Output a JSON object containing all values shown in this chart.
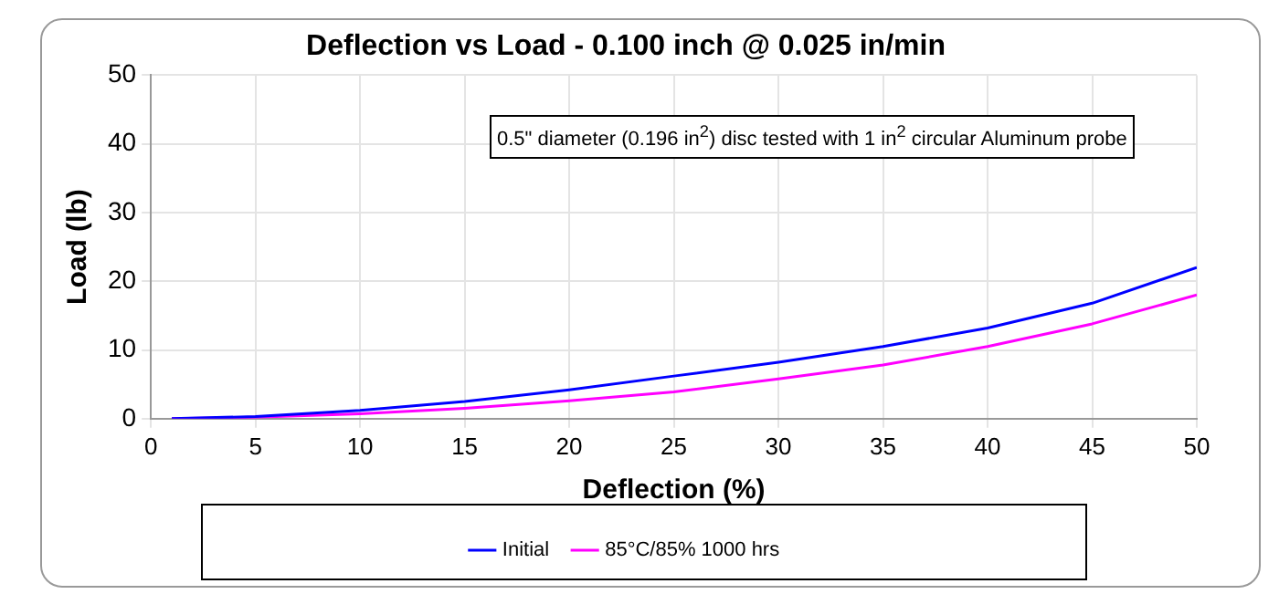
{
  "chart_data": {
    "type": "line",
    "title": "Deflection vs Load - 0.100 inch @ 0.025 in/min",
    "xlabel": "Deflection (%)",
    "ylabel": "Load (lb)",
    "annotations": [
      "0.5\" diameter (0.196 in$^{2}$) disc tested with 1 in$^{2}$ circular Aluminum probe"
    ],
    "x": [
      1,
      5,
      10,
      15,
      20,
      25,
      30,
      35,
      40,
      45,
      50
    ],
    "series": [
      {
        "name": "Initial",
        "color": "#0000ff",
        "values": [
          0,
          0.3,
          1.2,
          2.5,
          4.2,
          6.2,
          8.2,
          10.5,
          13.2,
          16.8,
          22
        ]
      },
      {
        "name": "85°C/85% 1000 hrs",
        "color": "#ff00ff",
        "values": [
          0,
          0.2,
          0.7,
          1.5,
          2.6,
          3.9,
          5.8,
          7.8,
          10.5,
          13.8,
          18
        ]
      }
    ],
    "xlim": [
      0,
      50
    ],
    "xticks": [
      0,
      5,
      10,
      15,
      20,
      25,
      30,
      35,
      40,
      45,
      50
    ],
    "ylim": [
      0,
      50
    ],
    "yticks": [
      0,
      10,
      20,
      30,
      40,
      50
    ],
    "grid": true,
    "legend": "bottom",
    "marker": "none",
    "line_style": "solid"
  }
}
